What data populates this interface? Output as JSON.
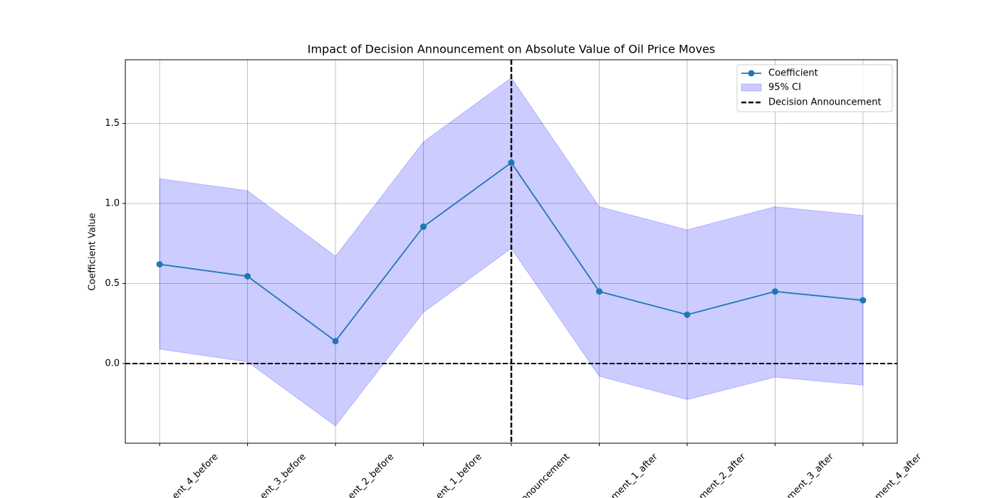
{
  "chart_data": {
    "type": "line",
    "title": "Impact of Decision Announcement on Absolute Value of Oil Price Moves",
    "y_label": "Coefficient Value",
    "categories": [
      "ent_4_before",
      "ent_3_before",
      "ent_2_before",
      "ent_1_before",
      "nnouncement",
      "ment_1_after",
      "ement_2_after",
      "ement_3_after",
      "ement_4_after"
    ],
    "series": [
      {
        "name": "Coefficient",
        "color": "#1f77b4",
        "values": [
          0.62,
          0.545,
          0.14,
          0.855,
          1.255,
          0.45,
          0.305,
          0.45,
          0.395
        ]
      }
    ],
    "ci": {
      "name": "95% CI",
      "color": "#0000ff",
      "lower": [
        0.09,
        0.01,
        -0.39,
        0.32,
        0.72,
        -0.08,
        -0.225,
        -0.085,
        -0.135
      ],
      "upper": [
        1.155,
        1.08,
        0.67,
        1.385,
        1.785,
        0.98,
        0.835,
        0.98,
        0.925
      ]
    },
    "vline": {
      "name": "Decision Announcement",
      "color": "#000000",
      "category_index": 4
    },
    "hline": {
      "color": "#000000",
      "y": 0
    },
    "ylim": [
      -0.498,
      1.898
    ],
    "yticks": [
      {
        "value": 0,
        "label": "0.0"
      },
      0.5,
      {
        "value": 1,
        "label": "1.0"
      },
      1.5
    ],
    "grid": true,
    "legend": "upper right"
  }
}
